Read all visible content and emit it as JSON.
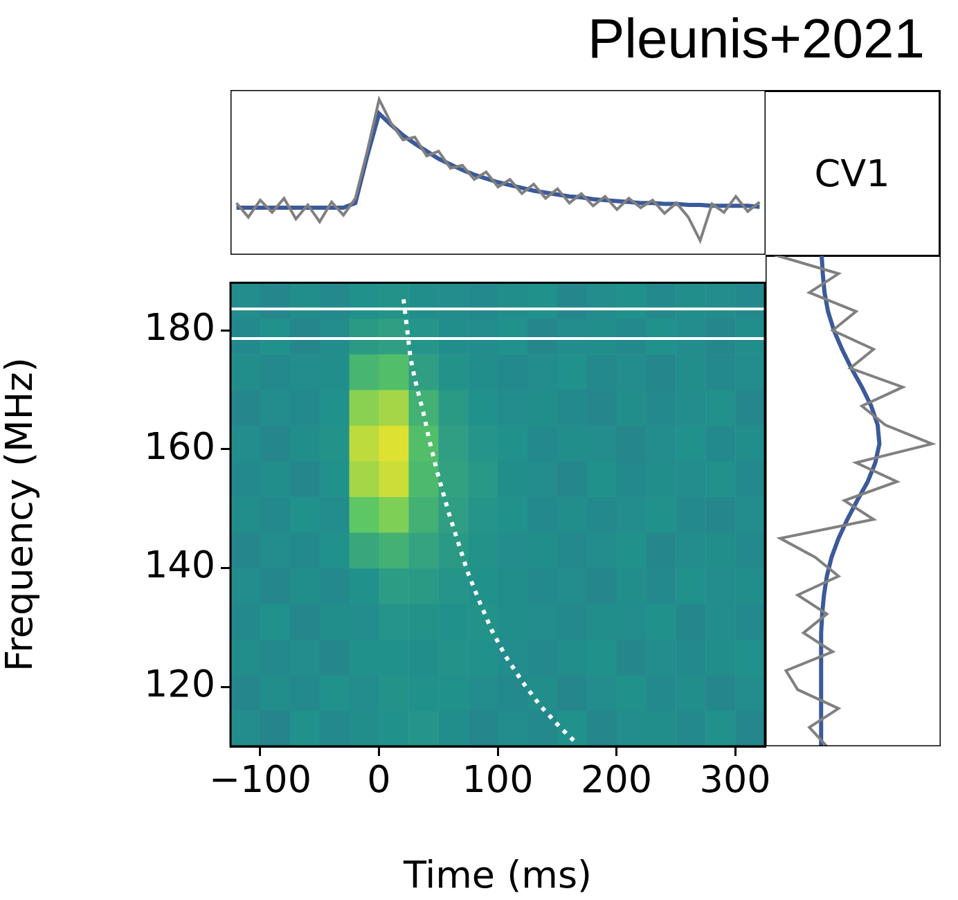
{
  "title": "Pleunis+2021",
  "annotation": "CV1",
  "chart_data": [
    {
      "type": "line",
      "x": [
        -120,
        -110,
        -100,
        -90,
        -80,
        -70,
        -60,
        -50,
        -40,
        -30,
        -20,
        -10,
        0,
        10,
        20,
        30,
        40,
        50,
        60,
        70,
        80,
        90,
        100,
        110,
        120,
        130,
        140,
        150,
        160,
        170,
        180,
        190,
        200,
        210,
        220,
        230,
        240,
        250,
        260,
        270,
        280,
        290,
        300,
        310,
        320
      ],
      "series": [
        {
          "color": "#808080",
          "values": [
            0.05,
            -0.1,
            0.08,
            -0.05,
            0.1,
            -0.12,
            0.03,
            -0.15,
            0.06,
            -0.08,
            0.1,
            0.6,
            1.15,
            0.9,
            0.72,
            0.75,
            0.55,
            0.6,
            0.42,
            0.45,
            0.3,
            0.38,
            0.22,
            0.3,
            0.15,
            0.25,
            0.1,
            0.2,
            0.05,
            0.15,
            0.02,
            0.12,
            -0.02,
            0.1,
            0.0,
            0.08,
            -0.06,
            0.05,
            -0.1,
            -0.35,
            0.04,
            -0.05,
            0.12,
            -0.04,
            0.06
          ]
        },
        {
          "color": "#3b5a9a",
          "values": [
            0,
            0,
            0,
            0,
            0,
            0,
            0,
            0,
            0,
            0,
            0.05,
            0.55,
            1.0,
            0.88,
            0.77,
            0.68,
            0.6,
            0.52,
            0.46,
            0.4,
            0.35,
            0.31,
            0.27,
            0.24,
            0.21,
            0.18,
            0.16,
            0.14,
            0.12,
            0.11,
            0.09,
            0.08,
            0.07,
            0.06,
            0.05,
            0.05,
            0.04,
            0.04,
            0.03,
            0.03,
            0.02,
            0.02,
            0.02,
            0.02,
            0.01
          ]
        }
      ],
      "xlim": [
        -125,
        325
      ],
      "ylim": [
        -0.5,
        1.25
      ],
      "tick_labels": false
    },
    {
      "type": "heatmap",
      "xlabel": "Time (ms)",
      "ylabel": "Frequency (MHz)",
      "xlim": [
        -125,
        325
      ],
      "xticks": [
        {
          "value": -100,
          "label": "−100"
        },
        0,
        100,
        200,
        300
      ],
      "ylim": [
        110,
        188
      ],
      "yticks": [
        120,
        140,
        160,
        180
      ],
      "time_bins": [
        -125,
        -100,
        -75,
        -50,
        -25,
        0,
        25,
        50,
        75,
        100,
        125,
        150,
        175,
        200,
        225,
        250,
        275,
        300,
        325
      ],
      "freq_bins": [
        110,
        116,
        122,
        128,
        134,
        140,
        146,
        152,
        158,
        164,
        170,
        176,
        182,
        188
      ],
      "cells": [
        [
          0.48,
          0.45,
          0.5,
          0.47,
          0.49,
          0.5,
          0.52,
          0.49,
          0.46,
          0.48,
          0.47,
          0.5,
          0.46,
          0.48,
          0.49,
          0.47,
          0.5,
          0.46
        ],
        [
          0.46,
          0.49,
          0.47,
          0.5,
          0.48,
          0.51,
          0.5,
          0.5,
          0.48,
          0.47,
          0.49,
          0.46,
          0.48,
          0.5,
          0.47,
          0.49,
          0.46,
          0.48
        ],
        [
          0.49,
          0.47,
          0.48,
          0.46,
          0.5,
          0.5,
          0.49,
          0.51,
          0.5,
          0.48,
          0.47,
          0.49,
          0.5,
          0.46,
          0.48,
          0.47,
          0.49,
          0.5
        ],
        [
          0.47,
          0.5,
          0.46,
          0.49,
          0.48,
          0.52,
          0.51,
          0.5,
          0.51,
          0.49,
          0.48,
          0.47,
          0.49,
          0.48,
          0.5,
          0.46,
          0.48,
          0.47
        ],
        [
          0.48,
          0.46,
          0.49,
          0.47,
          0.5,
          0.55,
          0.54,
          0.52,
          0.5,
          0.49,
          0.47,
          0.48,
          0.46,
          0.49,
          0.47,
          0.5,
          0.48,
          0.49
        ],
        [
          0.46,
          0.48,
          0.47,
          0.5,
          0.6,
          0.64,
          0.58,
          0.54,
          0.51,
          0.48,
          0.49,
          0.47,
          0.48,
          0.5,
          0.46,
          0.48,
          0.49,
          0.47
        ],
        [
          0.49,
          0.47,
          0.5,
          0.48,
          0.74,
          0.8,
          0.64,
          0.56,
          0.52,
          0.5,
          0.47,
          0.49,
          0.47,
          0.48,
          0.5,
          0.47,
          0.46,
          0.48
        ],
        [
          0.47,
          0.49,
          0.46,
          0.5,
          0.86,
          0.92,
          0.68,
          0.57,
          0.53,
          0.49,
          0.48,
          0.46,
          0.5,
          0.47,
          0.49,
          0.48,
          0.5,
          0.47
        ],
        [
          0.48,
          0.46,
          0.49,
          0.51,
          0.9,
          0.95,
          0.7,
          0.56,
          0.52,
          0.5,
          0.47,
          0.49,
          0.48,
          0.46,
          0.48,
          0.5,
          0.47,
          0.49
        ],
        [
          0.46,
          0.48,
          0.47,
          0.5,
          0.82,
          0.86,
          0.64,
          0.54,
          0.5,
          0.48,
          0.49,
          0.47,
          0.46,
          0.49,
          0.47,
          0.48,
          0.5,
          0.46
        ],
        [
          0.49,
          0.47,
          0.48,
          0.49,
          0.66,
          0.7,
          0.56,
          0.51,
          0.49,
          0.47,
          0.48,
          0.5,
          0.47,
          0.48,
          0.46,
          0.49,
          0.47,
          0.48
        ],
        [
          0.47,
          0.5,
          0.46,
          0.48,
          0.54,
          0.56,
          0.52,
          0.49,
          0.48,
          0.5,
          0.46,
          0.48,
          0.49,
          0.47,
          0.5,
          0.48,
          0.46,
          0.49
        ],
        [
          0.48,
          0.46,
          0.49,
          0.47,
          0.5,
          0.51,
          0.49,
          0.48,
          0.47,
          0.49,
          0.5,
          0.46,
          0.48,
          0.5,
          0.47,
          0.49,
          0.48,
          0.47
        ]
      ],
      "dispersion_curve": {
        "color": "#ffffff",
        "line_style": "dotted",
        "x": [
          20.7,
          23.0,
          26.6,
          30.6,
          37.6,
          42.3,
          49.3,
          58.6,
          65.6,
          74.4,
          83.1,
          94.8,
          106.5,
          121.0,
          135.6,
          153.0,
          167.6
        ],
        "y": [
          185.2,
          181.4,
          175.3,
          171.5,
          166.0,
          161.6,
          156.0,
          149.4,
          145.0,
          139.5,
          135.1,
          129.6,
          125.2,
          120.8,
          116.9,
          113.1,
          110.3
        ]
      },
      "masked_channels": [
        183.6,
        178.6
      ]
    },
    {
      "type": "line",
      "orientation": "horizontal",
      "y": [
        110,
        113,
        116,
        119,
        122,
        125,
        128,
        131,
        134,
        137,
        140,
        143,
        146,
        149,
        152,
        155,
        158,
        161,
        164,
        167,
        170,
        173,
        176,
        179,
        182,
        185,
        188
      ],
      "series": [
        {
          "color": "#808080",
          "values": [
            0.1,
            -0.2,
            0.3,
            -0.4,
            -0.6,
            0.2,
            -0.3,
            0.1,
            -0.4,
            0.3,
            -0.1,
            -0.7,
            0.9,
            0.4,
            1.3,
            0.6,
            1.9,
            1.1,
            0.7,
            1.4,
            0.5,
            0.9,
            0.2,
            0.6,
            -0.2,
            0.3,
            -0.8
          ]
        },
        {
          "color": "#3b5a9a",
          "values": [
            0,
            0,
            0,
            0,
            0,
            0,
            0.01,
            0.02,
            0.05,
            0.1,
            0.18,
            0.3,
            0.45,
            0.62,
            0.8,
            0.93,
            1.0,
            0.97,
            0.86,
            0.7,
            0.52,
            0.36,
            0.22,
            0.12,
            0.06,
            0.03,
            0.01
          ]
        }
      ],
      "xlim": [
        -0.95,
        2.05
      ],
      "ylim": [
        110,
        188
      ],
      "tick_labels": false
    }
  ]
}
